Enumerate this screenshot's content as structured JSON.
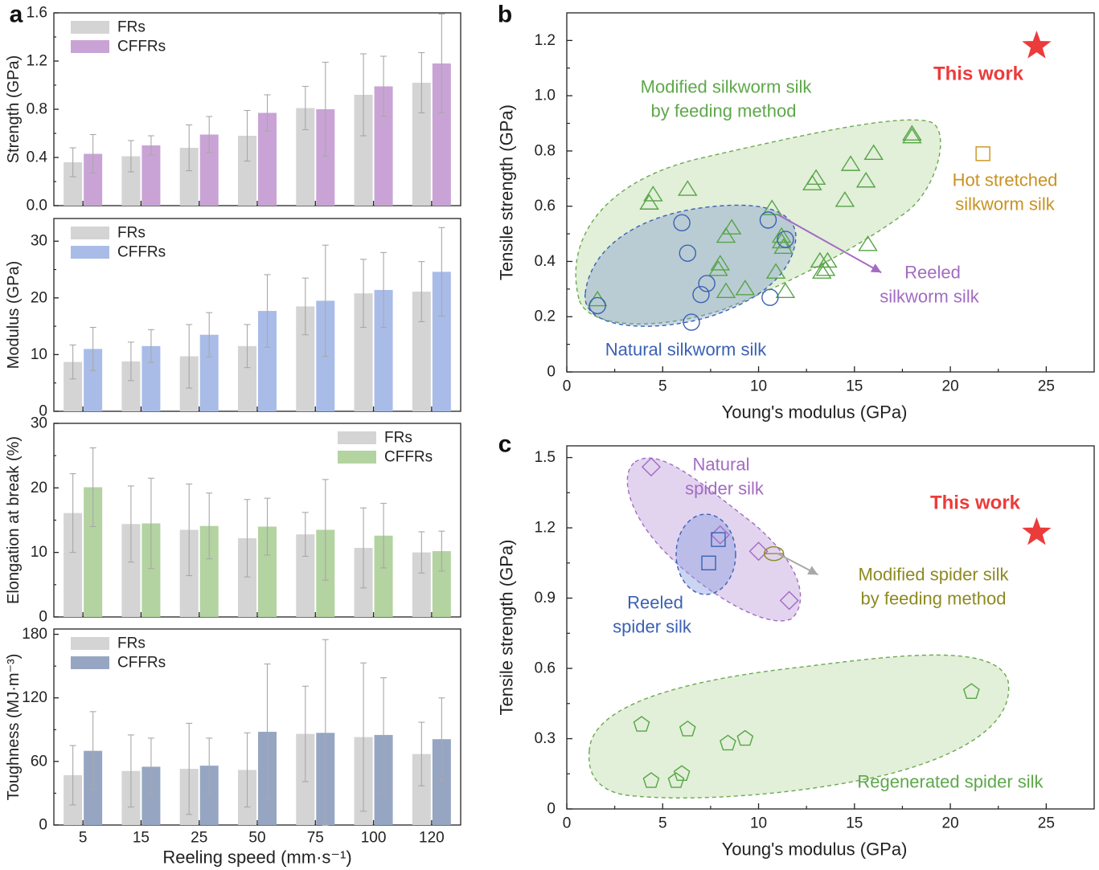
{
  "panel_labels": {
    "a": "a",
    "b": "b",
    "c": "c"
  },
  "colors": {
    "frs": "#d4d4d4",
    "purple": "#c9a3d6",
    "blue": "#a9bce8",
    "green": "#b3d3a0",
    "navy": "#96a6c2",
    "err": "#a8a8a8",
    "green_mk": "#56a546",
    "blue_mk": "#3b61b4",
    "purple_mk": "#a36bc3",
    "olive": "#8d8a22",
    "gold": "#c9921f",
    "red": "#ec3b3b"
  },
  "chart_data": [
    {
      "type": "bar",
      "panel": "a",
      "title": "",
      "categories": [
        "5",
        "15",
        "25",
        "50",
        "75",
        "100",
        "120"
      ],
      "xlabel": "Reeling speed (mm·s⁻¹)",
      "ylabel": "Strength (GPa)",
      "ylim": [
        0,
        1.6
      ],
      "yticks": [
        "0.0",
        "0.4",
        "0.8",
        "1.2",
        "1.6"
      ],
      "ytick_values": [
        0,
        0.4,
        0.8,
        1.2,
        1.6
      ],
      "legend": "top-left",
      "series": [
        {
          "name": "FRs",
          "values": [
            0.36,
            0.41,
            0.48,
            0.58,
            0.81,
            0.92,
            1.02
          ],
          "errors": [
            0.12,
            0.13,
            0.19,
            0.21,
            0.18,
            0.34,
            0.25
          ]
        },
        {
          "name": "CFFRs",
          "values": [
            0.43,
            0.5,
            0.59,
            0.77,
            0.8,
            0.99,
            1.18
          ],
          "errors": [
            0.16,
            0.08,
            0.15,
            0.15,
            0.39,
            0.25,
            0.41
          ]
        }
      ]
    },
    {
      "type": "bar",
      "panel": "a",
      "title": "",
      "categories": [
        "5",
        "15",
        "25",
        "50",
        "75",
        "100",
        "120"
      ],
      "ylabel": "Modulus (GPa)",
      "ylim": [
        0,
        34
      ],
      "yticks": [
        "0",
        "10",
        "20",
        "30"
      ],
      "ytick_values": [
        0,
        10,
        20,
        30
      ],
      "legend": "top-left",
      "series": [
        {
          "name": "FRs",
          "values": [
            8.7,
            8.8,
            9.7,
            11.5,
            18.5,
            20.8,
            21.1
          ],
          "errors": [
            3.0,
            3.4,
            5.6,
            3.8,
            5.0,
            6.0,
            5.3
          ]
        },
        {
          "name": "CFFRs",
          "values": [
            11.0,
            11.5,
            13.5,
            17.7,
            19.5,
            21.4,
            24.6
          ],
          "errors": [
            3.8,
            2.9,
            3.9,
            6.4,
            9.8,
            6.6,
            7.8
          ]
        }
      ]
    },
    {
      "type": "bar",
      "panel": "a",
      "title": "",
      "categories": [
        "5",
        "15",
        "25",
        "50",
        "75",
        "100",
        "120"
      ],
      "ylabel": "Elongation at break (%)",
      "ylim": [
        0,
        30
      ],
      "yticks": [
        "0",
        "10",
        "20",
        "30"
      ],
      "ytick_values": [
        0,
        10,
        20,
        30
      ],
      "legend": "top-right",
      "series": [
        {
          "name": "FRs",
          "values": [
            16.1,
            14.4,
            13.5,
            12.2,
            12.8,
            10.7,
            10.0
          ],
          "errors": [
            6.1,
            5.9,
            7.1,
            6.0,
            3.4,
            6.2,
            3.2
          ]
        },
        {
          "name": "CFFRs",
          "values": [
            20.1,
            14.5,
            14.1,
            14.0,
            13.5,
            12.6,
            10.2
          ],
          "errors": [
            6.1,
            7.0,
            5.1,
            4.4,
            7.8,
            5.0,
            3.1
          ]
        }
      ]
    },
    {
      "type": "bar",
      "panel": "a",
      "title": "",
      "categories": [
        "5",
        "15",
        "25",
        "50",
        "75",
        "100",
        "120"
      ],
      "ylabel": "Toughness (MJ·m⁻³)",
      "ylim": [
        0,
        185
      ],
      "yticks": [
        "0",
        "60",
        "120",
        "180"
      ],
      "ytick_values": [
        0,
        60,
        120,
        180
      ],
      "legend": "top-left",
      "series": [
        {
          "name": "FRs",
          "values": [
            47,
            51,
            53,
            52,
            86,
            83,
            67
          ],
          "errors": [
            28,
            34,
            43,
            35,
            45,
            70,
            30
          ]
        },
        {
          "name": "CFFRs",
          "values": [
            70,
            55,
            56,
            88,
            87,
            85,
            81
          ],
          "errors": [
            37,
            27,
            26,
            64,
            88,
            54,
            39
          ]
        }
      ]
    },
    {
      "type": "scatter",
      "panel": "b",
      "title": "",
      "xlabel": "Young's modulus (GPa)",
      "ylabel": "Tensile strength (GPa)",
      "xlim": [
        0,
        27.5
      ],
      "ylim": [
        0,
        1.3
      ],
      "xticks": [
        "0",
        "5",
        "10",
        "15",
        "20",
        "25"
      ],
      "xtick_values": [
        0,
        5,
        10,
        15,
        20,
        25
      ],
      "yticks": [
        "0",
        "0.2",
        "0.4",
        "0.6",
        "0.8",
        "1.0",
        "1.2"
      ],
      "ytick_values": [
        0,
        0.2,
        0.4,
        0.6,
        0.8,
        1.0,
        1.2
      ],
      "series": [
        {
          "name": "Modified silkworm silk by feeding method",
          "marker": "triangle",
          "x": [
            1.6,
            4.3,
            4.5,
            6.3,
            8.3,
            8.6,
            8.0,
            8.3,
            7.9,
            9.3,
            10.7,
            10.9,
            11.2,
            11.2,
            11.4,
            11.3,
            12.8,
            13.0,
            13.2,
            13.6,
            13.3,
            13.5,
            14.5,
            14.8,
            15.6,
            15.7,
            16.0,
            18.0,
            18.0
          ],
          "y": [
            0.26,
            0.61,
            0.64,
            0.66,
            0.49,
            0.52,
            0.39,
            0.29,
            0.37,
            0.3,
            0.59,
            0.36,
            0.49,
            0.47,
            0.29,
            0.45,
            0.68,
            0.7,
            0.4,
            0.4,
            0.36,
            0.37,
            0.62,
            0.75,
            0.69,
            0.46,
            0.79,
            0.85,
            0.86
          ]
        },
        {
          "name": "Natural silkworm silk",
          "marker": "circle",
          "x": [
            1.6,
            6.0,
            6.3,
            6.5,
            7.0,
            7.3,
            10.5,
            10.6,
            11.4
          ],
          "y": [
            0.24,
            0.54,
            0.43,
            0.18,
            0.28,
            0.32,
            0.55,
            0.27,
            0.48
          ]
        },
        {
          "name": "Hot stretched silkworm silk",
          "marker": "square",
          "x": [
            21.7
          ],
          "y": [
            0.79
          ]
        },
        {
          "name": "This work",
          "marker": "star",
          "x": [
            24.5
          ],
          "y": [
            1.18
          ]
        }
      ],
      "arrow": {
        "from": [
          11.0,
          0.57
        ],
        "to": [
          16.4,
          0.36
        ]
      },
      "regions": [
        {
          "name": "Modified silkworm silk by feeding method",
          "color": "green"
        },
        {
          "name": "Natural silkworm silk",
          "color": "blue"
        }
      ],
      "labels": [
        {
          "text": "Modified silkworm silk",
          "color": "green"
        },
        {
          "text": "by feeding method",
          "color": "green"
        },
        {
          "text": "Hot stretched",
          "color": "gold"
        },
        {
          "text": "silkworm silk",
          "color": "gold"
        },
        {
          "text": "Reeled",
          "color": "purple"
        },
        {
          "text": "silkworm silk",
          "color": "purple"
        },
        {
          "text": "Natural silkworm silk",
          "color": "blue"
        },
        {
          "text": "This work",
          "color": "red"
        }
      ]
    },
    {
      "type": "scatter",
      "panel": "c",
      "title": "",
      "xlabel": "Young's modulus (GPa)",
      "ylabel": "Tensile strength (GPa)",
      "xlim": [
        0,
        27.5
      ],
      "ylim": [
        0,
        1.55
      ],
      "xticks": [
        "0",
        "5",
        "10",
        "15",
        "20",
        "25"
      ],
      "xtick_values": [
        0,
        5,
        10,
        15,
        20,
        25
      ],
      "yticks": [
        "0",
        "0.3",
        "0.6",
        "0.9",
        "1.2",
        "1.5"
      ],
      "ytick_values": [
        0,
        0.3,
        0.6,
        0.9,
        1.2,
        1.5
      ],
      "series": [
        {
          "name": "Natural spider silk",
          "marker": "diamond",
          "x": [
            4.4,
            8.0,
            10.0,
            11.6
          ],
          "y": [
            1.46,
            1.17,
            1.1,
            0.89
          ]
        },
        {
          "name": "Reeled spider silk",
          "marker": "square",
          "x": [
            7.4,
            7.9
          ],
          "y": [
            1.05,
            1.15
          ]
        },
        {
          "name": "Modified spider silk by feeding method",
          "marker": "ellipse",
          "x": [
            10.8
          ],
          "y": [
            1.09
          ]
        },
        {
          "name": "Regenerated spider silk",
          "marker": "pentagon",
          "x": [
            3.9,
            4.4,
            5.7,
            6.0,
            6.3,
            8.4,
            9.3,
            21.1
          ],
          "y": [
            0.36,
            0.12,
            0.12,
            0.15,
            0.34,
            0.28,
            0.3,
            0.5
          ]
        },
        {
          "name": "This work",
          "marker": "star",
          "x": [
            24.5
          ],
          "y": [
            1.18
          ]
        }
      ],
      "arrow": {
        "from": [
          11.0,
          1.09
        ],
        "to": [
          13.1,
          1.0
        ]
      },
      "regions": [
        {
          "name": "Natural spider silk",
          "color": "purple"
        },
        {
          "name": "Reeled spider silk",
          "color": "blue"
        },
        {
          "name": "Regenerated spider silk",
          "color": "green"
        }
      ],
      "labels": [
        {
          "text": "Natural",
          "color": "purple"
        },
        {
          "text": "spider silk",
          "color": "purple"
        },
        {
          "text": "Reeled",
          "color": "blue"
        },
        {
          "text": "spider silk",
          "color": "blue"
        },
        {
          "text": "Modified spider silk",
          "color": "olive"
        },
        {
          "text": "by feeding method",
          "color": "olive"
        },
        {
          "text": "Regenerated spider silk",
          "color": "green"
        },
        {
          "text": "This work",
          "color": "red"
        }
      ]
    }
  ]
}
